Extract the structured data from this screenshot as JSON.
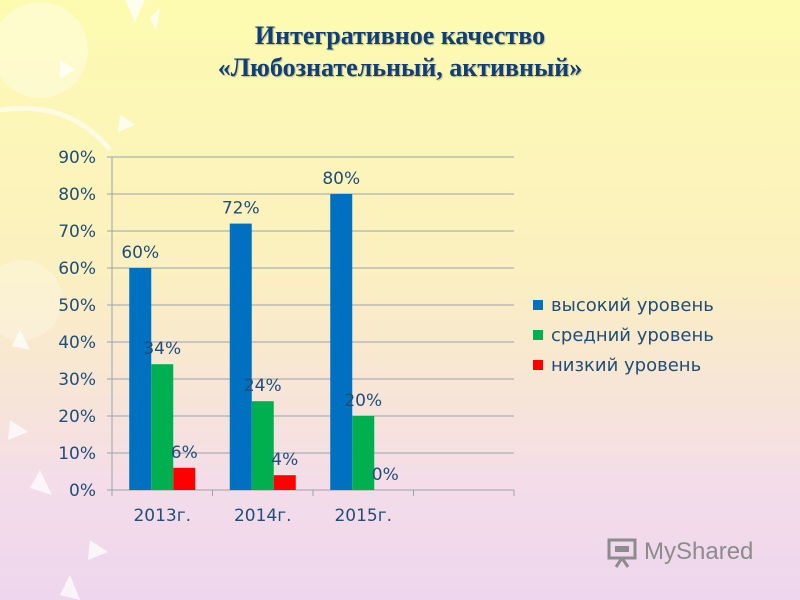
{
  "title": [
    "Интегративное качество",
    "«Любознательный, активный»"
  ],
  "chart_data": {
    "type": "bar",
    "categories": [
      "2013г.",
      "2014г.",
      "2015г."
    ],
    "series": [
      {
        "name": "высокий уровень",
        "color": "#0070c0",
        "values": [
          60,
          72,
          80
        ],
        "labels": [
          "60%",
          "72%",
          "80%"
        ]
      },
      {
        "name": "средний уровень",
        "color": "#00b050",
        "values": [
          34,
          24,
          20
        ],
        "labels": [
          "34%",
          "24%",
          "20%"
        ]
      },
      {
        "name": "низкий уровень",
        "color": "#ff0000",
        "values": [
          6,
          4,
          0
        ],
        "labels": [
          "6%",
          "4%",
          "0%"
        ]
      }
    ],
    "ylim": [
      0,
      90
    ],
    "yticks": [
      "0%",
      "10%",
      "20%",
      "30%",
      "40%",
      "50%",
      "60%",
      "70%",
      "80%",
      "90%"
    ],
    "grid": true,
    "legend_position": "right"
  },
  "watermark": {
    "text": "MyShared",
    "icon": "presentation-board-icon"
  }
}
